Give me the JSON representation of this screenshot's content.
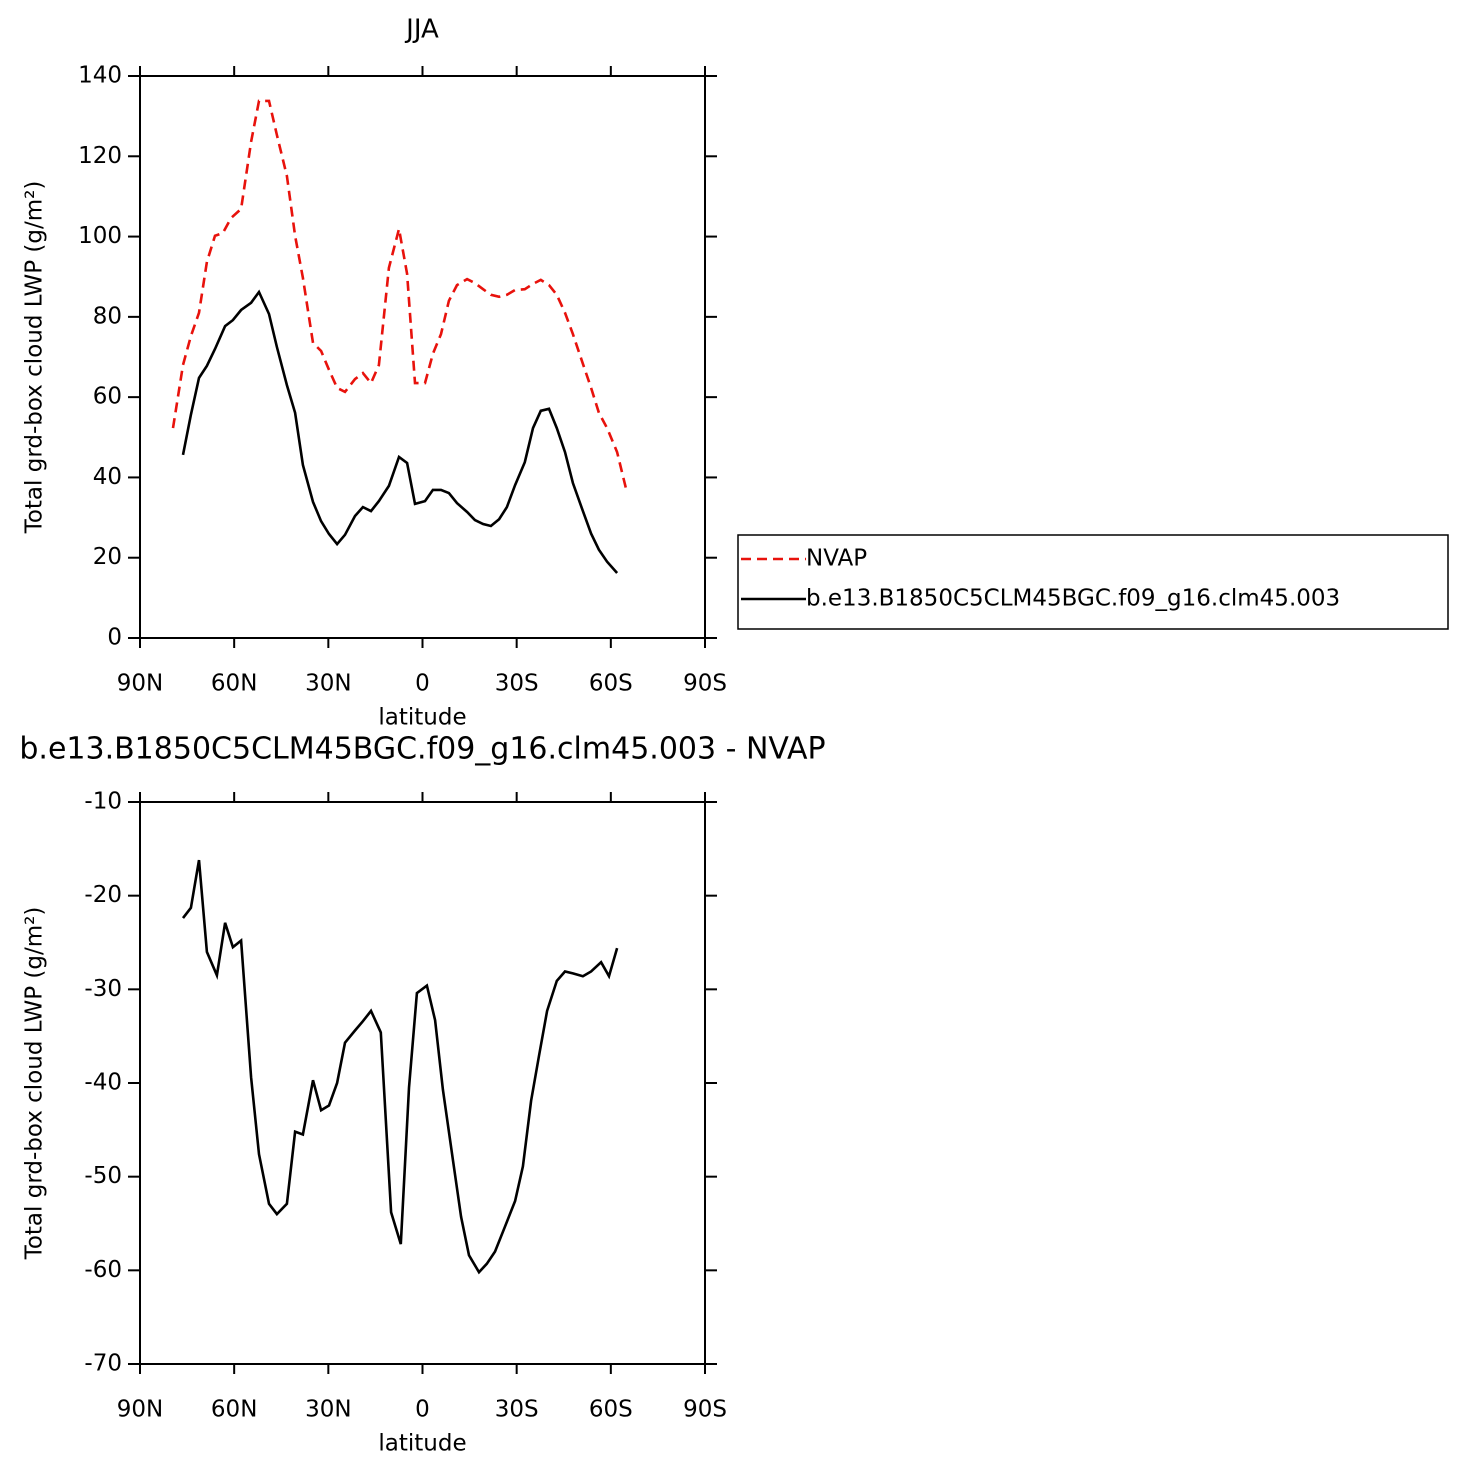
{
  "chart_data": [
    {
      "type": "line",
      "title": "JJA",
      "xlabel": "latitude",
      "ylabel": "Total grd-box cloud LWP (g/m²)",
      "xlim": [
        90,
        -90
      ],
      "xticks": [
        {
          "value": 90,
          "label": "90N"
        },
        {
          "value": 60,
          "label": "60N"
        },
        {
          "value": 30,
          "label": "30N"
        },
        0,
        {
          "value": -30,
          "label": "30S"
        },
        {
          "value": -60,
          "label": "60S"
        },
        {
          "value": -90,
          "label": "90S"
        }
      ],
      "ylim": [
        0,
        140
      ],
      "yticks": [
        0,
        20,
        40,
        60,
        80,
        100,
        120,
        140
      ],
      "legend": "right",
      "series": [
        {
          "name": "NVAP",
          "color": "#e8120c",
          "linestyle": "dashed",
          "x": [
            79.5,
            76.3,
            73.8,
            71.2,
            68.7,
            66.1,
            63.6,
            61.0,
            57.8,
            54.6,
            52.1,
            48.9,
            46.4,
            43.2,
            40.6,
            38.1,
            34.9,
            32.3,
            29.8,
            27.2,
            24.7,
            21.5,
            19.0,
            16.4,
            13.9,
            10.7,
            7.5,
            4.9,
            2.4,
            -0.8,
            -3.3,
            -5.9,
            -8.4,
            -11.0,
            -14.2,
            -16.7,
            -19.3,
            -21.8,
            -24.4,
            -26.9,
            -29.5,
            -32.6,
            -35.2,
            -37.7,
            -40.3,
            -42.8,
            -45.4,
            -47.9,
            -51.1,
            -53.7,
            -56.2,
            -58.8,
            -62.0,
            -65.1
          ],
          "values": [
            52.3,
            68.0,
            75.2,
            81.0,
            93.7,
            100.2,
            100.9,
            104.6,
            106.9,
            123.6,
            133.8,
            133.8,
            125.3,
            115.1,
            100.2,
            89.7,
            73.5,
            71.5,
            66.8,
            62.3,
            61.3,
            64.5,
            66.0,
            63.5,
            68.0,
            92.2,
            101.9,
            90.7,
            63.5,
            63.5,
            70.8,
            75.7,
            84.0,
            87.9,
            89.4,
            88.4,
            86.9,
            85.5,
            85.0,
            85.5,
            86.7,
            86.9,
            88.2,
            89.2,
            87.9,
            85.5,
            81.0,
            75.7,
            68.3,
            62.3,
            56.1,
            52.3,
            46.3,
            36.4
          ]
        },
        {
          "name": "b.e13.B1850C5CLM45BGC.f09_g16.clm45.003",
          "color": "#000000",
          "linestyle": "solid",
          "x": [
            76.3,
            73.8,
            71.2,
            68.7,
            66.1,
            62.9,
            60.4,
            57.8,
            54.6,
            52.1,
            48.9,
            46.4,
            43.2,
            40.6,
            38.1,
            34.9,
            32.3,
            29.8,
            27.2,
            24.7,
            21.5,
            19.0,
            16.4,
            13.9,
            10.7,
            7.5,
            4.9,
            2.4,
            -0.8,
            -3.3,
            -5.9,
            -8.4,
            -11.0,
            -14.2,
            -16.7,
            -19.3,
            -21.8,
            -24.4,
            -26.9,
            -29.5,
            -32.6,
            -35.2,
            -37.7,
            -40.3,
            -42.8,
            -45.4,
            -47.9,
            -51.1,
            -53.7,
            -56.2,
            -58.8,
            -62.0
          ],
          "values": [
            45.6,
            55.6,
            64.8,
            67.8,
            72.0,
            77.7,
            79.2,
            81.7,
            83.5,
            86.2,
            80.7,
            72.5,
            63.0,
            56.1,
            43.1,
            33.9,
            29.1,
            25.9,
            23.4,
            25.7,
            30.4,
            32.6,
            31.6,
            34.1,
            37.9,
            45.1,
            43.6,
            33.4,
            34.1,
            36.9,
            36.9,
            36.1,
            33.6,
            31.4,
            29.4,
            28.4,
            27.9,
            29.6,
            32.6,
            38.1,
            43.8,
            52.3,
            56.6,
            57.1,
            52.3,
            46.3,
            38.6,
            31.6,
            26.0,
            22.0,
            19.0,
            16.2
          ]
        }
      ]
    },
    {
      "type": "line",
      "title": "b.e13.B1850C5CLM45BGC.f09_g16.clm45.003 - NVAP",
      "xlabel": "latitude",
      "ylabel": "Total grd-box cloud LWP (g/m²)",
      "xlim": [
        90,
        -90
      ],
      "xticks": [
        {
          "value": 90,
          "label": "90N"
        },
        {
          "value": 60,
          "label": "60N"
        },
        {
          "value": 30,
          "label": "30N"
        },
        0,
        {
          "value": -30,
          "label": "30S"
        },
        {
          "value": -60,
          "label": "60S"
        },
        {
          "value": -90,
          "label": "90S"
        }
      ],
      "ylim": [
        -70,
        -10
      ],
      "yticks": [
        -70,
        -60,
        -50,
        -40,
        -30,
        -20,
        -10
      ],
      "series": [
        {
          "color": "#000000",
          "linestyle": "solid",
          "x": [
            76.3,
            73.8,
            71.2,
            68.7,
            65.5,
            62.9,
            60.4,
            57.8,
            54.6,
            52.1,
            48.9,
            46.4,
            43.2,
            40.6,
            38.1,
            34.9,
            32.3,
            29.8,
            27.2,
            24.7,
            21.5,
            19.0,
            16.4,
            13.3,
            10.0,
            6.9,
            4.3,
            1.8,
            -1.4,
            -4.0,
            -6.5,
            -9.7,
            -12.3,
            -14.8,
            -18.0,
            -20.5,
            -23.1,
            -26.3,
            -29.5,
            -32.0,
            -34.6,
            -37.1,
            -39.7,
            -42.8,
            -45.4,
            -47.9,
            -51.1,
            -53.7,
            -56.9,
            -59.4,
            -62.0
          ],
          "values": [
            -22.4,
            -21.3,
            -16.2,
            -26.0,
            -28.5,
            -22.9,
            -25.5,
            -24.8,
            -39.4,
            -47.6,
            -52.9,
            -54.0,
            -52.9,
            -45.2,
            -45.5,
            -39.7,
            -42.9,
            -42.4,
            -40.0,
            -35.7,
            -34.4,
            -33.4,
            -32.3,
            -34.6,
            -53.8,
            -57.2,
            -40.5,
            -30.4,
            -29.6,
            -33.3,
            -40.7,
            -48.2,
            -54.3,
            -58.4,
            -60.2,
            -59.3,
            -58.0,
            -55.3,
            -52.6,
            -48.9,
            -41.9,
            -37.1,
            -32.3,
            -29.1,
            -28.1,
            -28.3,
            -28.6,
            -28.1,
            -27.1,
            -28.6,
            -25.6
          ]
        }
      ]
    }
  ]
}
